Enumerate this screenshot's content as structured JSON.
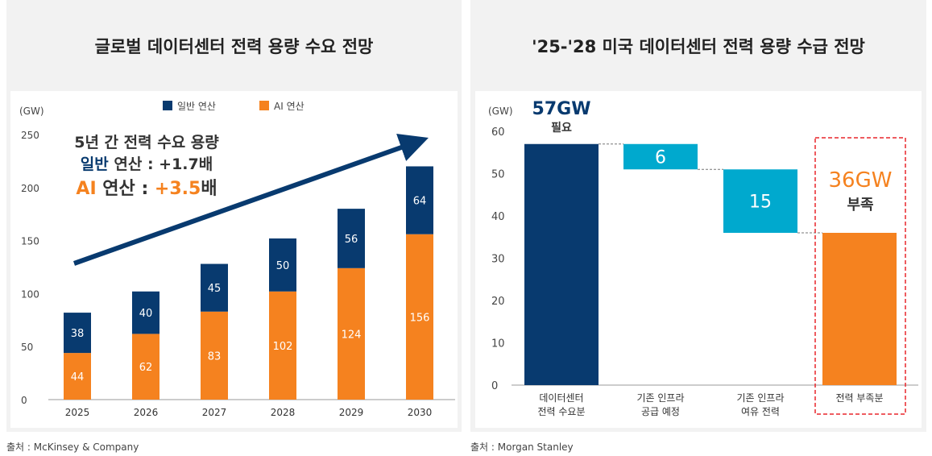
{
  "left": {
    "title": "글로벌 데이터센터 전력 용량 수요 전망",
    "source": "출처 : McKinsey & Company",
    "annotation": {
      "line1": "5년 간 전력 수요 용량",
      "line2_a": "일반",
      "line2_b": " 연산 : +1.7배",
      "line3_a": "AI",
      "line3_b": " 연산 : ",
      "line3_c": "+3.5",
      "line3_d": "배"
    }
  },
  "right": {
    "title": "'25-'28 미국 데이터센터 전력 용량 수급 전망",
    "source": "출처 : Morgan Stanley",
    "callout_need": {
      "value": "57GW",
      "label": "필요"
    },
    "callout_short": {
      "value": "36GW",
      "label": "부족"
    }
  },
  "colors": {
    "general": "#083a6f",
    "ai": "#f5821f",
    "supply": "#00a9ce",
    "highlight": "#e8262b"
  },
  "chart_data": [
    {
      "type": "bar",
      "stacked": true,
      "ylabel": "(GW)",
      "ylim": [
        0,
        250
      ],
      "yticks": [
        0,
        50,
        100,
        150,
        200,
        250
      ],
      "categories": [
        "2025",
        "2026",
        "2027",
        "2028",
        "2029",
        "2030"
      ],
      "series": [
        {
          "name": "AI 연산",
          "values": [
            44,
            62,
            83,
            102,
            124,
            156
          ]
        },
        {
          "name": "일반 연산",
          "values": [
            38,
            40,
            45,
            50,
            56,
            64
          ]
        }
      ],
      "legend": "top"
    },
    {
      "type": "waterfall",
      "ylabel": "(GW)",
      "ylim": [
        0,
        60
      ],
      "yticks": [
        0,
        10,
        20,
        30,
        40,
        50,
        60
      ],
      "categories": [
        "데이터센터\n전력 수요분",
        "기존 인프라\n공급 예정",
        "기존 인프라\n여유 전력",
        "전력 부족분"
      ],
      "values": [
        57,
        -6,
        -15,
        36
      ],
      "labels": [
        "",
        "6",
        "15",
        ""
      ]
    }
  ]
}
